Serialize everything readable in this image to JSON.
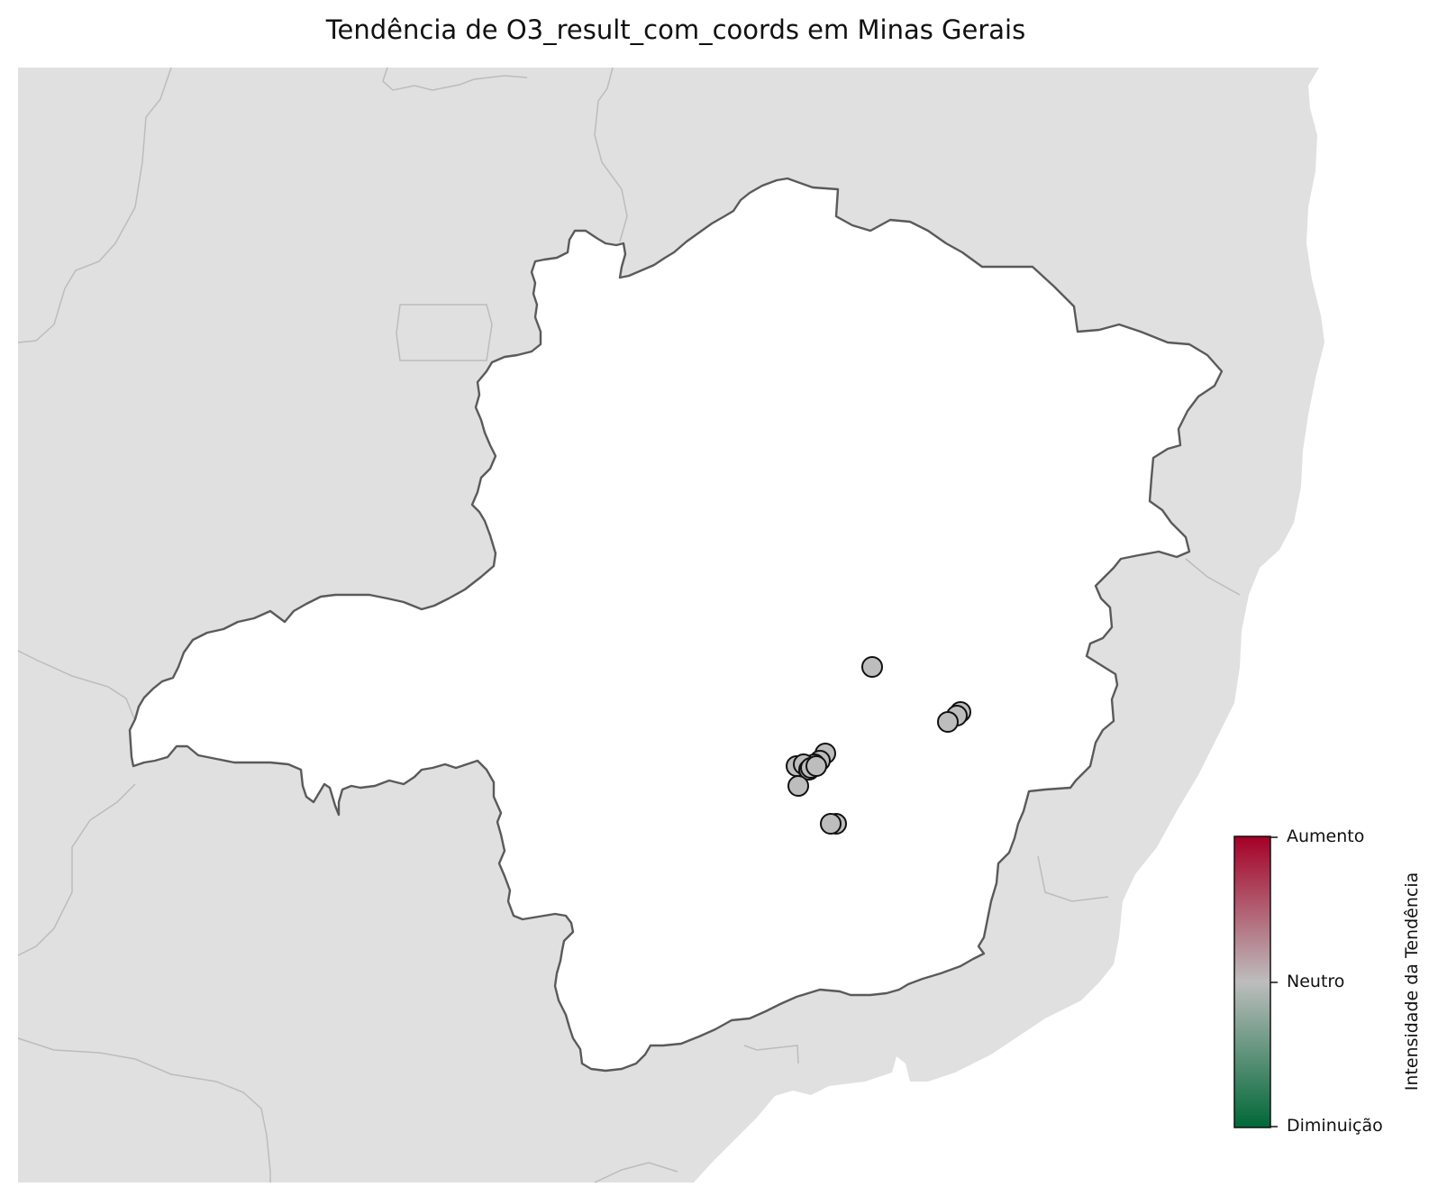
{
  "title": "Tendência de O3_result_com_coords em Minas Gerais",
  "colorbar": {
    "label": "Intensidade da Tendência",
    "ticks": [
      "Aumento",
      "Neutro",
      "Diminuição"
    ],
    "colors": {
      "high": "#a50026",
      "mid": "#bdbdbd",
      "low": "#006837"
    }
  },
  "colors": {
    "background_land": "#e0e0e0",
    "state_fill": "#ffffff",
    "state_border": "#5a5a5a",
    "other_borders": "#bcbcbc",
    "station_fill": "#bdbdbd",
    "station_edge": "#111111"
  },
  "stations": [
    {
      "trend": "Neutro"
    },
    {
      "trend": "Neutro"
    },
    {
      "trend": "Neutro"
    },
    {
      "trend": "Neutro"
    },
    {
      "trend": "Neutro"
    },
    {
      "trend": "Neutro"
    },
    {
      "trend": "Neutro"
    },
    {
      "trend": "Neutro"
    },
    {
      "trend": "Neutro"
    },
    {
      "trend": "Neutro"
    },
    {
      "trend": "Neutro"
    },
    {
      "trend": "Neutro"
    },
    {
      "trend": "Neutro"
    },
    {
      "trend": "Neutro"
    },
    {
      "trend": "Neutro"
    }
  ]
}
